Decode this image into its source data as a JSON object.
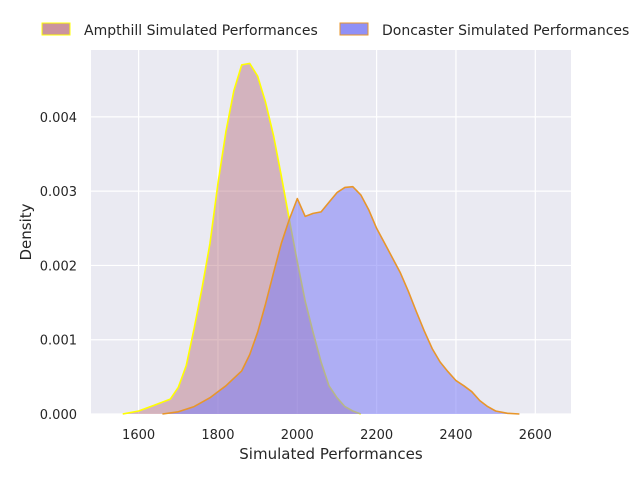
{
  "chart_data": {
    "type": "area",
    "xlabel": "Simulated Performances",
    "ylabel": "Density",
    "xlim": [
      1480,
      2690
    ],
    "ylim": [
      0,
      0.0049
    ],
    "x_ticks": [
      1600,
      1800,
      2000,
      2200,
      2400,
      2600
    ],
    "y_ticks": [
      0.0,
      0.001,
      0.002,
      0.003,
      0.004
    ],
    "x_tick_labels": [
      "1600",
      "1800",
      "2000",
      "2200",
      "2400",
      "2600"
    ],
    "y_tick_labels": [
      "0.000",
      "0.001",
      "0.002",
      "0.003",
      "0.004"
    ],
    "grid": true,
    "legend_position": "top, outside plot area",
    "series": [
      {
        "name": "Ampthill Simulated Performances",
        "fill_color": "#b9707e",
        "fill_opacity": 0.45,
        "line_color": "#ffff00",
        "points": [
          [
            1560,
            0
          ],
          [
            1600,
            4e-05
          ],
          [
            1640,
            0.00012
          ],
          [
            1660,
            0.00016
          ],
          [
            1680,
            0.0002
          ],
          [
            1700,
            0.00036
          ],
          [
            1720,
            0.00065
          ],
          [
            1740,
            0.00115
          ],
          [
            1760,
            0.0017
          ],
          [
            1780,
            0.0023
          ],
          [
            1800,
            0.0031
          ],
          [
            1820,
            0.0038
          ],
          [
            1840,
            0.00435
          ],
          [
            1860,
            0.0047
          ],
          [
            1880,
            0.00472
          ],
          [
            1900,
            0.00455
          ],
          [
            1920,
            0.0042
          ],
          [
            1940,
            0.00375
          ],
          [
            1960,
            0.0032
          ],
          [
            1980,
            0.00262
          ],
          [
            2000,
            0.00205
          ],
          [
            2020,
            0.00152
          ],
          [
            2040,
            0.0011
          ],
          [
            2060,
            0.0007
          ],
          [
            2080,
            0.00038
          ],
          [
            2100,
            0.00022
          ],
          [
            2120,
            0.0001
          ],
          [
            2140,
            4e-05
          ],
          [
            2160,
            0
          ]
        ]
      },
      {
        "name": "Doncaster Simulated Performances",
        "fill_color": "#7c7cf5",
        "fill_opacity": 0.55,
        "line_color": "#e8962a",
        "points": [
          [
            1660,
            0
          ],
          [
            1700,
            3e-05
          ],
          [
            1740,
            0.0001
          ],
          [
            1780,
            0.00022
          ],
          [
            1800,
            0.0003
          ],
          [
            1820,
            0.00038
          ],
          [
            1840,
            0.00048
          ],
          [
            1860,
            0.00058
          ],
          [
            1880,
            0.0008
          ],
          [
            1900,
            0.0011
          ],
          [
            1920,
            0.00148
          ],
          [
            1940,
            0.0019
          ],
          [
            1960,
            0.0023
          ],
          [
            1980,
            0.00262
          ],
          [
            2000,
            0.0029
          ],
          [
            2020,
            0.00266
          ],
          [
            2040,
            0.0027
          ],
          [
            2060,
            0.00272
          ],
          [
            2080,
            0.00285
          ],
          [
            2100,
            0.00298
          ],
          [
            2120,
            0.00305
          ],
          [
            2140,
            0.00306
          ],
          [
            2160,
            0.00295
          ],
          [
            2180,
            0.00275
          ],
          [
            2200,
            0.0025
          ],
          [
            2220,
            0.0023
          ],
          [
            2240,
            0.0021
          ],
          [
            2260,
            0.0019
          ],
          [
            2280,
            0.00165
          ],
          [
            2300,
            0.00138
          ],
          [
            2320,
            0.00112
          ],
          [
            2340,
            0.00088
          ],
          [
            2360,
            0.0007
          ],
          [
            2380,
            0.00057
          ],
          [
            2400,
            0.00045
          ],
          [
            2420,
            0.00038
          ],
          [
            2440,
            0.0003
          ],
          [
            2460,
            0.00018
          ],
          [
            2480,
            0.0001
          ],
          [
            2500,
            4e-05
          ],
          [
            2530,
            1e-05
          ],
          [
            2560,
            0
          ]
        ]
      }
    ]
  }
}
